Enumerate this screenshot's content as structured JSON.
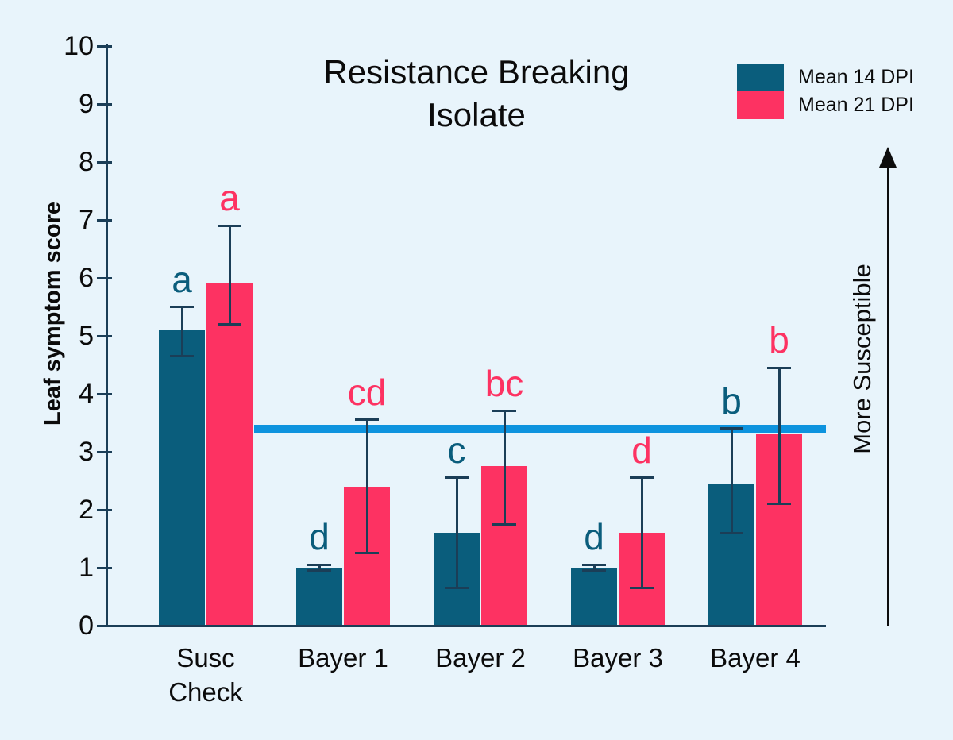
{
  "chart_data": {
    "type": "bar",
    "title": "Resistance Breaking Isolate",
    "title_lines": [
      "Resistance Breaking",
      "Isolate"
    ],
    "ylabel": "Leaf symptom score",
    "xlabel": "",
    "ylim": [
      0,
      10
    ],
    "yticks": [
      0,
      1,
      2,
      3,
      4,
      5,
      6,
      7,
      8,
      9,
      10
    ],
    "categories": [
      "Susc Check",
      "Bayer 1",
      "Bayer 2",
      "Bayer 3",
      "Bayer 4"
    ],
    "series": [
      {
        "name": "Mean 14 DPI",
        "color": "#0a5d7c",
        "values": [
          5.1,
          1.0,
          1.6,
          1.0,
          2.45
        ],
        "err_low": [
          4.65,
          0.95,
          0.65,
          0.95,
          1.6
        ],
        "err_high": [
          5.5,
          1.05,
          2.55,
          1.05,
          3.4
        ],
        "sig_letters": [
          "a",
          "d",
          "c",
          "d",
          "b"
        ]
      },
      {
        "name": "Mean 21 DPI",
        "color": "#fd3262",
        "values": [
          5.9,
          2.4,
          2.75,
          1.6,
          3.3
        ],
        "err_low": [
          5.2,
          1.25,
          1.75,
          0.65,
          2.1
        ],
        "err_high": [
          6.9,
          3.55,
          3.7,
          2.55,
          4.45
        ],
        "sig_letters": [
          "a",
          "cd",
          "bc",
          "d",
          "b"
        ]
      }
    ],
    "threshold_line": {
      "value": 3.4,
      "color": "#0d93de",
      "spans_categories": [
        "Bayer 1",
        "Bayer 4"
      ]
    },
    "right_annotation": {
      "label": "More Susceptible",
      "arrow_direction": "up"
    },
    "legend": {
      "position": "top-right",
      "entries": [
        "Mean 14 DPI",
        "Mean 21 DPI"
      ]
    },
    "grid": false,
    "background_color": "#e8f4fb",
    "axis_color": "#1b3e57",
    "error_bar_color": "#1b3e57"
  }
}
